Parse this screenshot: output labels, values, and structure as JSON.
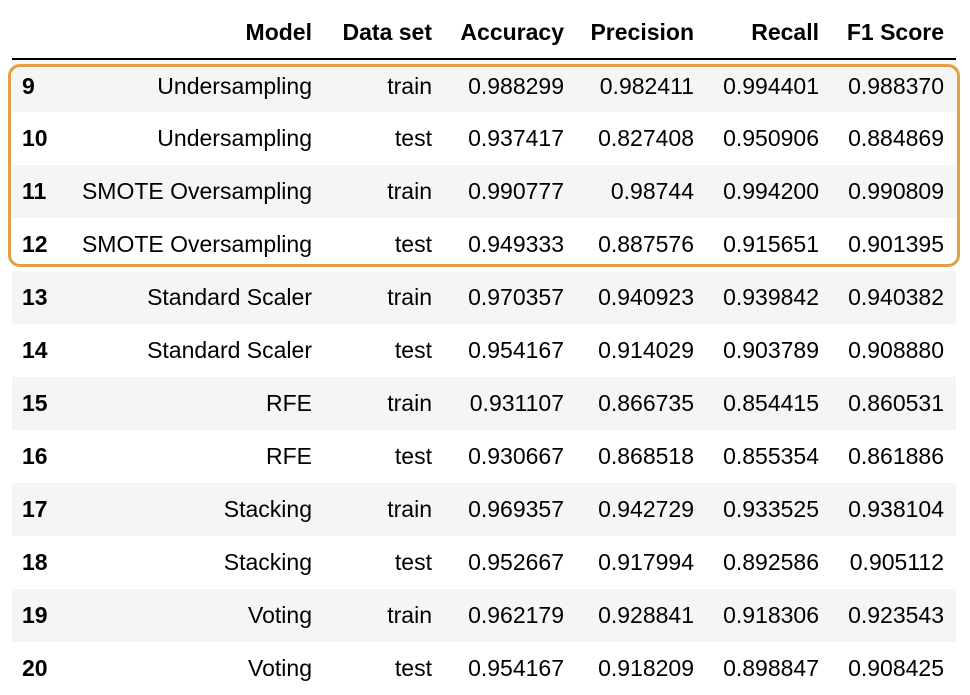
{
  "table": {
    "columns": [
      "",
      "Model",
      "Data set",
      "Accuracy",
      "Precision",
      "Recall",
      "F1 Score"
    ],
    "rows": [
      {
        "index": "9",
        "model": "Undersampling",
        "dataset": "train",
        "accuracy": "0.988299",
        "precision": "0.982411",
        "recall": "0.994401",
        "f1": "0.988370"
      },
      {
        "index": "10",
        "model": "Undersampling",
        "dataset": "test",
        "accuracy": "0.937417",
        "precision": "0.827408",
        "recall": "0.950906",
        "f1": "0.884869"
      },
      {
        "index": "11",
        "model": "SMOTE Oversampling",
        "dataset": "train",
        "accuracy": "0.990777",
        "precision": "0.98744",
        "recall": "0.994200",
        "f1": "0.990809"
      },
      {
        "index": "12",
        "model": "SMOTE Oversampling",
        "dataset": "test",
        "accuracy": "0.949333",
        "precision": "0.887576",
        "recall": "0.915651",
        "f1": "0.901395"
      },
      {
        "index": "13",
        "model": "Standard Scaler",
        "dataset": "train",
        "accuracy": "0.970357",
        "precision": "0.940923",
        "recall": "0.939842",
        "f1": "0.940382"
      },
      {
        "index": "14",
        "model": "Standard Scaler",
        "dataset": "test",
        "accuracy": "0.954167",
        "precision": "0.914029",
        "recall": "0.903789",
        "f1": "0.908880"
      },
      {
        "index": "15",
        "model": "RFE",
        "dataset": "train",
        "accuracy": "0.931107",
        "precision": "0.866735",
        "recall": "0.854415",
        "f1": "0.860531"
      },
      {
        "index": "16",
        "model": "RFE",
        "dataset": "test",
        "accuracy": "0.930667",
        "precision": "0.868518",
        "recall": "0.855354",
        "f1": "0.861886"
      },
      {
        "index": "17",
        "model": "Stacking",
        "dataset": "train",
        "accuracy": "0.969357",
        "precision": "0.942729",
        "recall": "0.933525",
        "f1": "0.938104"
      },
      {
        "index": "18",
        "model": "Stacking",
        "dataset": "test",
        "accuracy": "0.952667",
        "precision": "0.917994",
        "recall": "0.892586",
        "f1": "0.905112"
      },
      {
        "index": "19",
        "model": "Voting",
        "dataset": "train",
        "accuracy": "0.962179",
        "precision": "0.928841",
        "recall": "0.918306",
        "f1": "0.923543"
      },
      {
        "index": "20",
        "model": "Voting",
        "dataset": "test",
        "accuracy": "0.954167",
        "precision": "0.918209",
        "recall": "0.898847",
        "f1": "0.908425"
      }
    ]
  },
  "colors": {
    "highlight_border": "#e0a046",
    "row_stripe": "#f5f5f5"
  }
}
